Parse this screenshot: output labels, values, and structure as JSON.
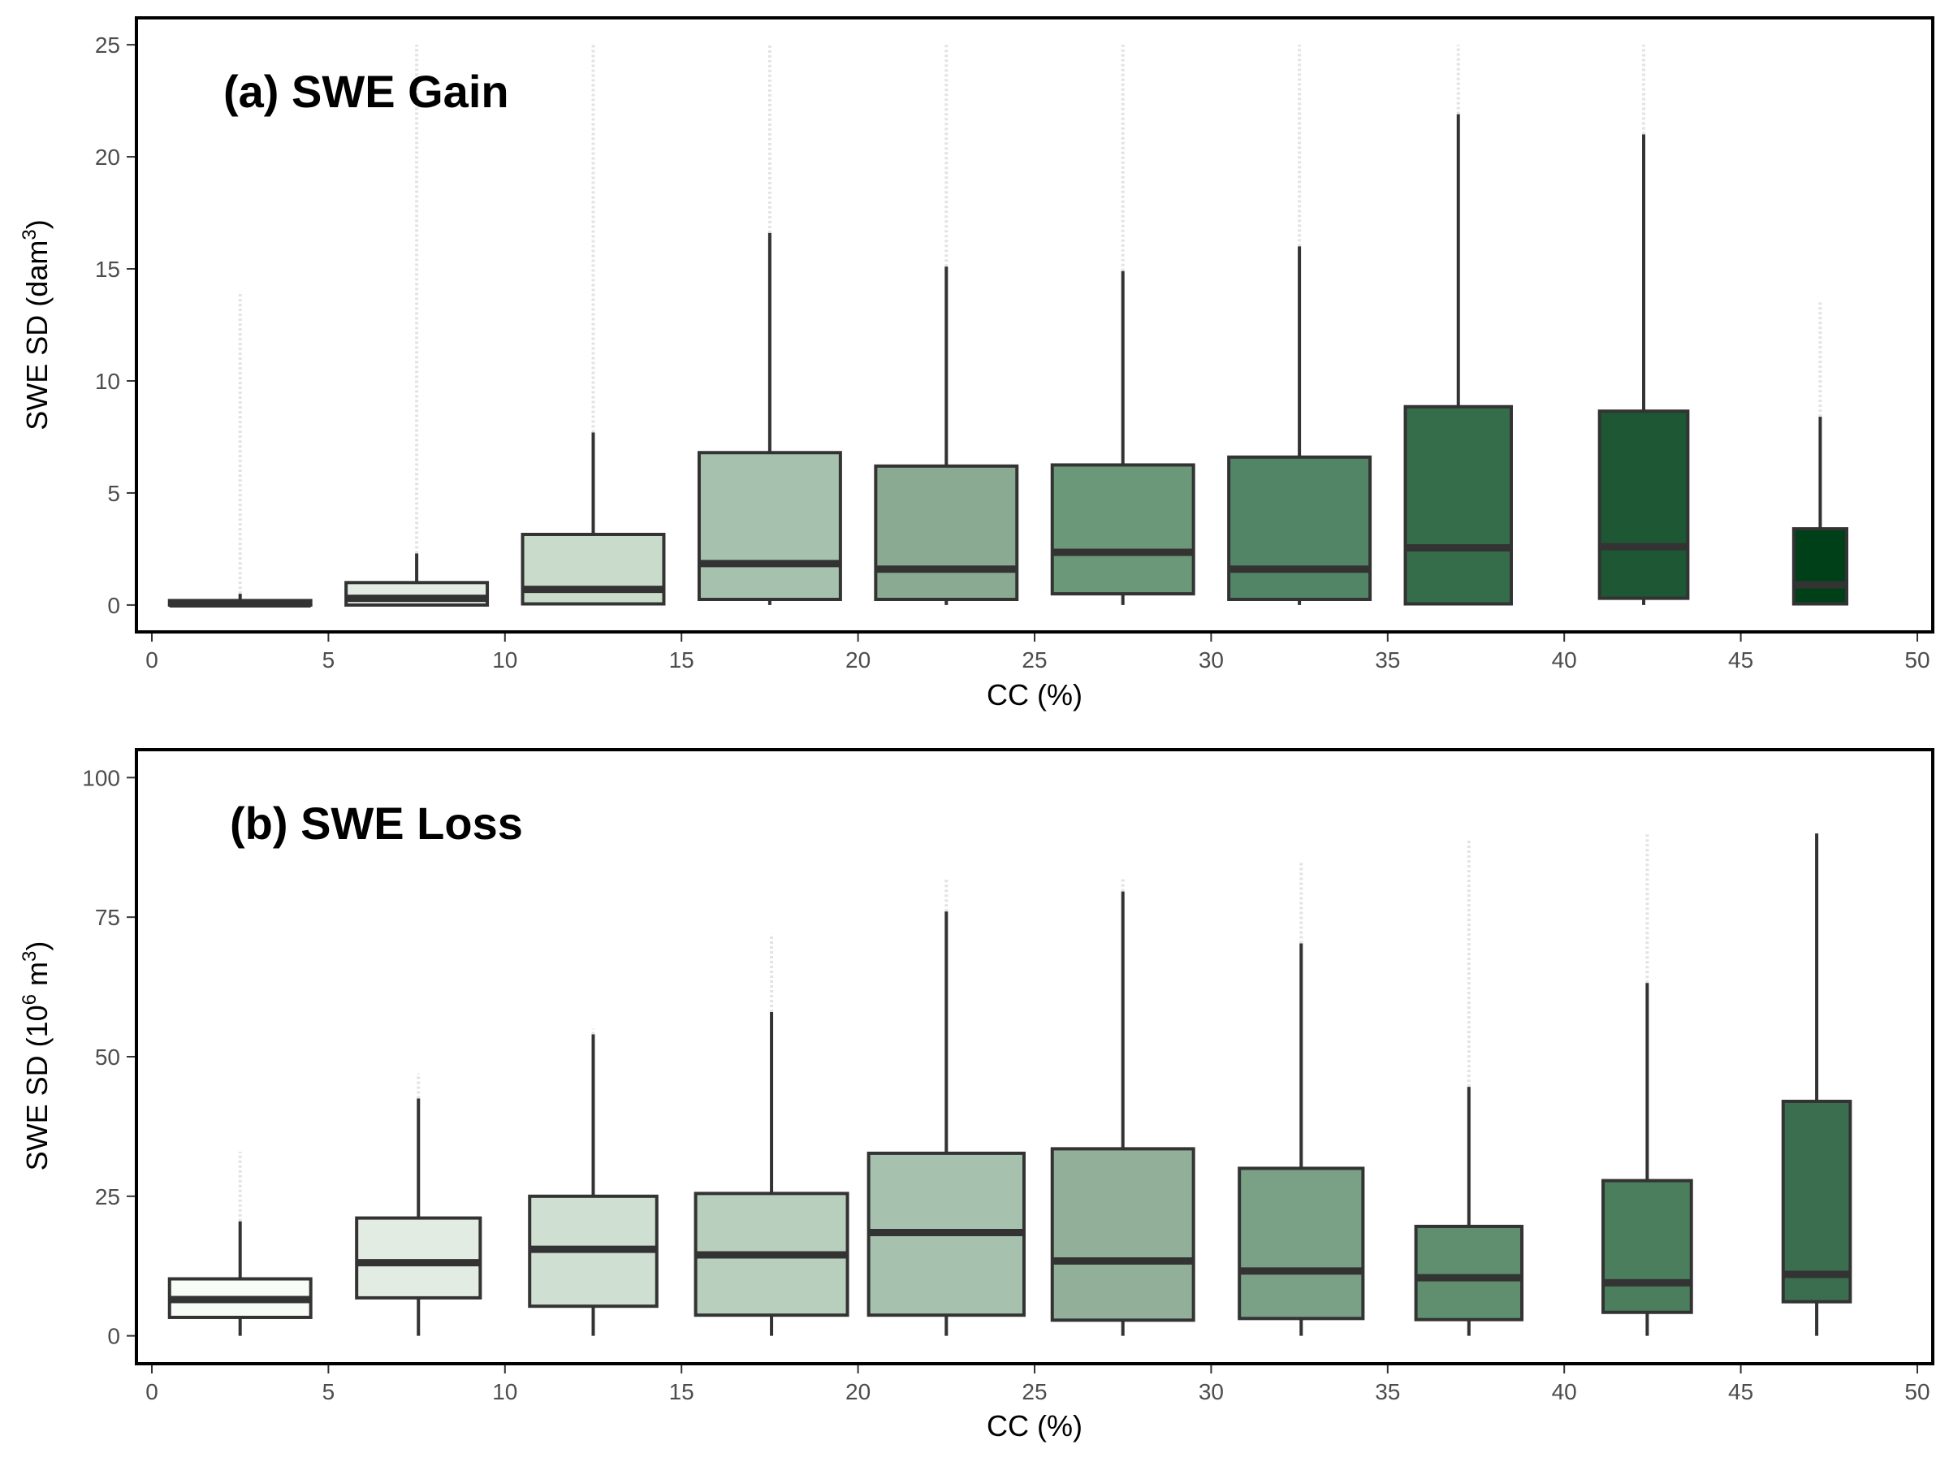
{
  "chart_data": [
    {
      "type": "box",
      "title": "(a) SWE Gain",
      "xlabel": "CC (%)",
      "ylabel": "SWE SD (dam",
      "ylabel_sup": "3",
      "ylabel_close": ")",
      "xlim": [
        0,
        50
      ],
      "ylim": [
        -1.2,
        26.2
      ],
      "xticks": [
        0,
        5,
        10,
        15,
        20,
        25,
        30,
        35,
        40,
        45,
        50
      ],
      "yticks": [
        0,
        5,
        10,
        15,
        20,
        25
      ],
      "bins": [
        {
          "x0": 0.5,
          "x1": 4.5,
          "whisker_low": 0,
          "q1": 0,
          "median": 0.05,
          "q3": 0.2,
          "whisker_high": 0.5,
          "outlier_top": 14,
          "fill": "#f7fcf7"
        },
        {
          "x0": 5.5,
          "x1": 9.5,
          "whisker_low": 0,
          "q1": 0,
          "median": 0.3,
          "q3": 1.0,
          "whisker_high": 2.3,
          "outlier_top": 25,
          "fill": "#e3ece3"
        },
        {
          "x0": 10.5,
          "x1": 14.5,
          "whisker_low": 0,
          "q1": 0.05,
          "median": 0.7,
          "q3": 3.15,
          "whisker_high": 7.7,
          "outlier_top": 25,
          "fill": "#c9dbca"
        },
        {
          "x0": 15.5,
          "x1": 19.5,
          "whisker_low": 0,
          "q1": 0.25,
          "median": 1.85,
          "q3": 6.8,
          "whisker_high": 16.6,
          "outlier_top": 25,
          "fill": "#a6c2ae"
        },
        {
          "x0": 20.5,
          "x1": 24.5,
          "whisker_low": 0,
          "q1": 0.25,
          "median": 1.6,
          "q3": 6.2,
          "whisker_high": 15.1,
          "outlier_top": 25,
          "fill": "#8aab92"
        },
        {
          "x0": 25.5,
          "x1": 29.5,
          "whisker_low": 0,
          "q1": 0.5,
          "median": 2.35,
          "q3": 6.25,
          "whisker_high": 14.9,
          "outlier_top": 25,
          "fill": "#6c987a"
        },
        {
          "x0": 30.5,
          "x1": 34.5,
          "whisker_low": 0,
          "q1": 0.25,
          "median": 1.6,
          "q3": 6.6,
          "whisker_high": 16.0,
          "outlier_top": 25,
          "fill": "#528466"
        },
        {
          "x0": 35.5,
          "x1": 38.5,
          "whisker_low": 0,
          "q1": 0.05,
          "median": 2.55,
          "q3": 8.85,
          "whisker_high": 21.9,
          "outlier_top": 25,
          "fill": "#356d4a"
        },
        {
          "x0": 41.0,
          "x1": 43.5,
          "whisker_low": 0,
          "q1": 0.3,
          "median": 2.6,
          "q3": 8.65,
          "whisker_high": 21.0,
          "outlier_top": 25,
          "fill": "#1d5733"
        },
        {
          "x0": 46.5,
          "x1": 48.0,
          "whisker_low": 0,
          "q1": 0.05,
          "median": 0.9,
          "q3": 3.4,
          "whisker_high": 8.4,
          "outlier_top": 13.5,
          "fill": "#004019"
        }
      ]
    },
    {
      "type": "box",
      "title": "(b) SWE Loss",
      "xlabel": "CC (%)",
      "ylabel": "SWE SD (10",
      "ylabel_sup": "6",
      "ylabel_mid": " m",
      "ylabel_sup2": "3",
      "ylabel_close": ")",
      "xlim": [
        0,
        50
      ],
      "ylim": [
        -5,
        105
      ],
      "xticks": [
        0,
        5,
        10,
        15,
        20,
        25,
        30,
        35,
        40,
        45,
        50
      ],
      "yticks": [
        0,
        25,
        50,
        75,
        100
      ],
      "bins": [
        {
          "x0": 0.5,
          "x1": 4.5,
          "whisker_low": 0,
          "q1": 3.3,
          "median": 6.5,
          "q3": 10.2,
          "whisker_high": 20.5,
          "outlier_top": 33,
          "fill": "#f7fcf7"
        },
        {
          "x0": 5.8,
          "x1": 9.3,
          "whisker_low": 0,
          "q1": 6.8,
          "median": 13.1,
          "q3": 21.1,
          "whisker_high": 42.5,
          "outlier_top": 47,
          "fill": "#e3ece3"
        },
        {
          "x0": 10.7,
          "x1": 14.3,
          "whisker_low": 0,
          "q1": 5.3,
          "median": 15.5,
          "q3": 25.0,
          "whisker_high": 54.0,
          "outlier_top": 55,
          "fill": "#cfe0d2"
        },
        {
          "x0": 15.4,
          "x1": 19.7,
          "whisker_low": 0,
          "q1": 3.7,
          "median": 14.5,
          "q3": 25.5,
          "whisker_high": 58.0,
          "outlier_top": 72,
          "fill": "#b9cfbe"
        },
        {
          "x0": 20.3,
          "x1": 24.7,
          "whisker_low": 0,
          "q1": 3.7,
          "median": 18.5,
          "q3": 32.7,
          "whisker_high": 76.0,
          "outlier_top": 82,
          "fill": "#a6c2ae"
        },
        {
          "x0": 25.5,
          "x1": 29.5,
          "whisker_low": 0,
          "q1": 2.8,
          "median": 13.4,
          "q3": 33.5,
          "whisker_high": 79.6,
          "outlier_top": 82,
          "fill": "#92af99"
        },
        {
          "x0": 30.8,
          "x1": 34.3,
          "whisker_low": 0,
          "q1": 3.1,
          "median": 11.6,
          "q3": 30.0,
          "whisker_high": 70.3,
          "outlier_top": 85,
          "fill": "#7aa186"
        },
        {
          "x0": 35.8,
          "x1": 38.8,
          "whisker_low": 0,
          "q1": 2.9,
          "median": 10.4,
          "q3": 19.6,
          "whisker_high": 44.6,
          "outlier_top": 89,
          "fill": "#5f8f6e"
        },
        {
          "x0": 41.1,
          "x1": 43.6,
          "whisker_low": 0,
          "q1": 4.2,
          "median": 9.5,
          "q3": 27.8,
          "whisker_high": 63.2,
          "outlier_top": 90,
          "fill": "#4b7e5c"
        },
        {
          "x0": 46.2,
          "x1": 48.1,
          "whisker_low": 0,
          "q1": 6.1,
          "median": 11.0,
          "q3": 42.0,
          "whisker_high": 90.0,
          "outlier_top": 90,
          "fill": "#3b6e4f"
        }
      ]
    }
  ],
  "colors": {
    "frame": "#000000",
    "box_stroke": "#333333",
    "outlier": "#cccccc",
    "tick_text": "#4d4d4d"
  }
}
